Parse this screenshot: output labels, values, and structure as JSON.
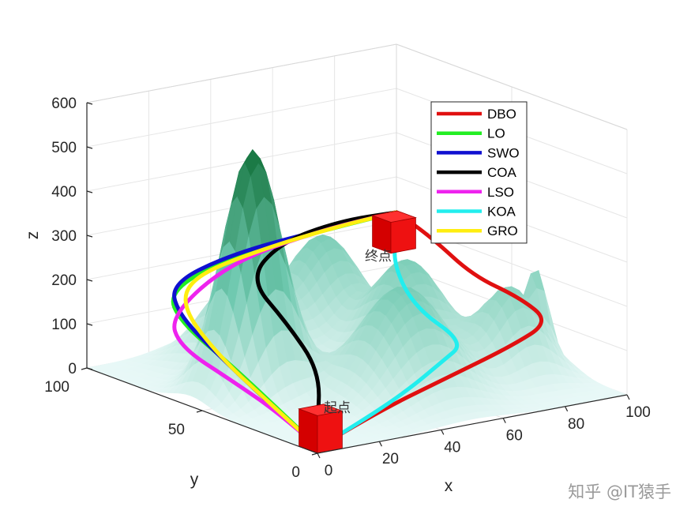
{
  "chart_data": {
    "type": "surface3d-with-paths",
    "xlabel": "x",
    "ylabel": "y",
    "zlabel": "z",
    "xlim": [
      0,
      100
    ],
    "ylim": [
      0,
      100
    ],
    "zlim": [
      0,
      600
    ],
    "x_ticks": [
      "0",
      "20",
      "40",
      "60",
      "80",
      "100"
    ],
    "y_ticks": [
      "0",
      "50",
      "100"
    ],
    "z_ticks": [
      "0",
      "100",
      "200",
      "300",
      "400",
      "500",
      "600"
    ],
    "grid": true,
    "legend_position": "top-right",
    "start_label": "起点",
    "end_label": "终点",
    "start_point": [
      1,
      1,
      10
    ],
    "end_point": [
      100,
      100,
      220
    ],
    "series": [
      {
        "name": "DBO",
        "color": "#e01010",
        "path": [
          [
            1,
            1,
            10
          ],
          [
            20,
            2,
            60
          ],
          [
            45,
            5,
            100
          ],
          [
            70,
            10,
            130
          ],
          [
            90,
            20,
            140
          ],
          [
            95,
            40,
            150
          ],
          [
            95,
            60,
            160
          ],
          [
            98,
            82,
            200
          ],
          [
            100,
            100,
            220
          ]
        ]
      },
      {
        "name": "LO",
        "color": "#22ee22",
        "path": [
          [
            1,
            1,
            10
          ],
          [
            2,
            20,
            60
          ],
          [
            5,
            45,
            110
          ],
          [
            8,
            70,
            150
          ],
          [
            15,
            85,
            180
          ],
          [
            40,
            95,
            200
          ],
          [
            70,
            99,
            210
          ],
          [
            100,
            100,
            220
          ]
        ]
      },
      {
        "name": "SWO",
        "color": "#1010d0",
        "path": [
          [
            1,
            1,
            10
          ],
          [
            2,
            22,
            60
          ],
          [
            5,
            48,
            115
          ],
          [
            9,
            72,
            160
          ],
          [
            18,
            88,
            190
          ],
          [
            45,
            97,
            205
          ],
          [
            75,
            99,
            215
          ],
          [
            100,
            100,
            220
          ]
        ]
      },
      {
        "name": "COA",
        "color": "#000000",
        "path": [
          [
            1,
            1,
            10
          ],
          [
            3,
            4,
            50
          ],
          [
            12,
            15,
            140
          ],
          [
            20,
            40,
            190
          ],
          [
            30,
            70,
            220
          ],
          [
            55,
            90,
            230
          ],
          [
            80,
            98,
            230
          ],
          [
            100,
            100,
            220
          ]
        ]
      },
      {
        "name": "LSO",
        "color": "#ee22ee",
        "path": [
          [
            1,
            1,
            10
          ],
          [
            1,
            18,
            55
          ],
          [
            2,
            40,
            85
          ],
          [
            4,
            65,
            110
          ],
          [
            12,
            80,
            140
          ],
          [
            40,
            92,
            200
          ],
          [
            75,
            99,
            215
          ],
          [
            100,
            100,
            220
          ]
        ]
      },
      {
        "name": "KOA",
        "color": "#22eeee",
        "path": [
          [
            1,
            1,
            10
          ],
          [
            15,
            2,
            45
          ],
          [
            35,
            8,
            80
          ],
          [
            55,
            20,
            95
          ],
          [
            70,
            30,
            100
          ],
          [
            72,
            55,
            130
          ],
          [
            82,
            78,
            180
          ],
          [
            96,
            93,
            215
          ],
          [
            100,
            100,
            220
          ]
        ]
      },
      {
        "name": "GRO",
        "color": "#ffee10",
        "path": [
          [
            1,
            1,
            10
          ],
          [
            2,
            25,
            70
          ],
          [
            5,
            50,
            120
          ],
          [
            12,
            75,
            170
          ],
          [
            25,
            88,
            195
          ],
          [
            50,
            95,
            205
          ],
          [
            78,
            99,
            215
          ],
          [
            100,
            100,
            220
          ]
        ]
      }
    ],
    "peaks": [
      {
        "x": 20,
        "y": 55,
        "z": 550,
        "spread": 8
      },
      {
        "x": 50,
        "y": 30,
        "z": 250,
        "spread": 12
      },
      {
        "x": 70,
        "y": 55,
        "z": 230,
        "spread": 10
      },
      {
        "x": 85,
        "y": 30,
        "z": 200,
        "spread": 8
      },
      {
        "x": 65,
        "y": 85,
        "z": 240,
        "spread": 10
      },
      {
        "x": 97,
        "y": 35,
        "z": 170,
        "spread": 3
      },
      {
        "x": 35,
        "y": 80,
        "z": 200,
        "spread": 10
      }
    ]
  },
  "watermark": "知乎 @IT猿手"
}
